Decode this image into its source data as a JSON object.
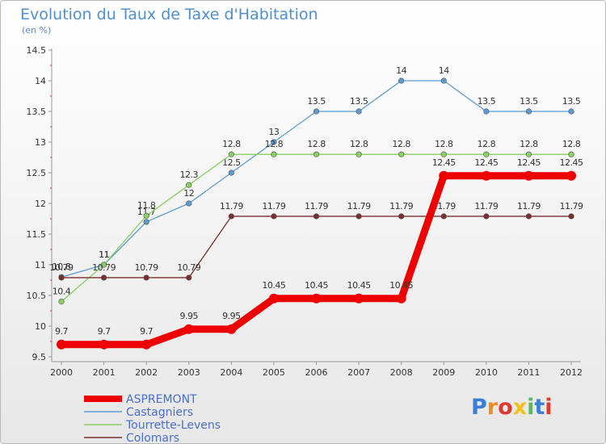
{
  "chart_data": {
    "type": "line",
    "title": "Evolution du Taux de Taxe d'Habitation",
    "subtitle": "(en %)",
    "x": [
      "2000",
      "2001",
      "2002",
      "2003",
      "2004",
      "2005",
      "2006",
      "2007",
      "2008",
      "2009",
      "2010",
      "2011",
      "2012"
    ],
    "y_ticks": [
      "9.5",
      "10",
      "10.5",
      "11",
      "11.5",
      "12",
      "12.5",
      "13",
      "13.5",
      "14",
      "14.5"
    ],
    "ylim": [
      9.5,
      14.5
    ],
    "grid": false,
    "legend_position": "bottom-left",
    "series": [
      {
        "name": "ASPREMONT",
        "color": "#ee0000",
        "values": [
          9.7,
          9.7,
          9.7,
          9.95,
          9.95,
          10.45,
          10.45,
          10.45,
          10.45,
          12.45,
          12.45,
          12.45,
          12.45
        ],
        "labels": [
          "9.7",
          "9.7",
          "9.7",
          "9.95",
          "9.95",
          "10.45",
          "10.45",
          "10.45",
          "10.45",
          "12.45",
          "12.45",
          "12.45",
          "12.45"
        ]
      },
      {
        "name": "Castagniers",
        "color": "#5b9bd5",
        "values": [
          10.8,
          11,
          11.7,
          12,
          12.5,
          13,
          13.5,
          13.5,
          14,
          14,
          13.5,
          13.5,
          13.5
        ],
        "labels": [
          "10.8",
          "11",
          "11.7",
          "12",
          "12.5",
          "13",
          "13.5",
          "13.5",
          "14",
          "14",
          "13.5",
          "13.5",
          "13.5"
        ]
      },
      {
        "name": "Tourrette-Levens",
        "color": "#88d060",
        "values": [
          10.4,
          11,
          11.8,
          12.3,
          12.8,
          12.8,
          12.8,
          12.8,
          12.8,
          12.8,
          12.8,
          12.8,
          12.8
        ],
        "labels": [
          "10.4",
          "11",
          "11.8",
          "12.3",
          "12.8",
          "12.8",
          "12.8",
          "12.8",
          "12.8",
          "12.8",
          "12.8",
          "12.8",
          "12.8"
        ]
      },
      {
        "name": "Colomars",
        "color": "#7a2e2e",
        "values": [
          10.79,
          10.79,
          10.79,
          10.79,
          11.79,
          11.79,
          11.79,
          11.79,
          11.79,
          11.79,
          11.79,
          11.79,
          11.79
        ],
        "labels": [
          "10.79",
          "10.79",
          "10.79",
          "10.79",
          "11.79",
          "11.79",
          "11.79",
          "11.79",
          "11.79",
          "11.79",
          "11.79",
          "11.79",
          "11.79"
        ]
      }
    ]
  },
  "logo": {
    "text": "Proxiti",
    "letter_colors": [
      "#3b7fd4",
      "#f08c1f",
      "#e0392e",
      "#f3c21a",
      "#5cb85c",
      "#3b7fd4",
      "#e0392e"
    ]
  }
}
